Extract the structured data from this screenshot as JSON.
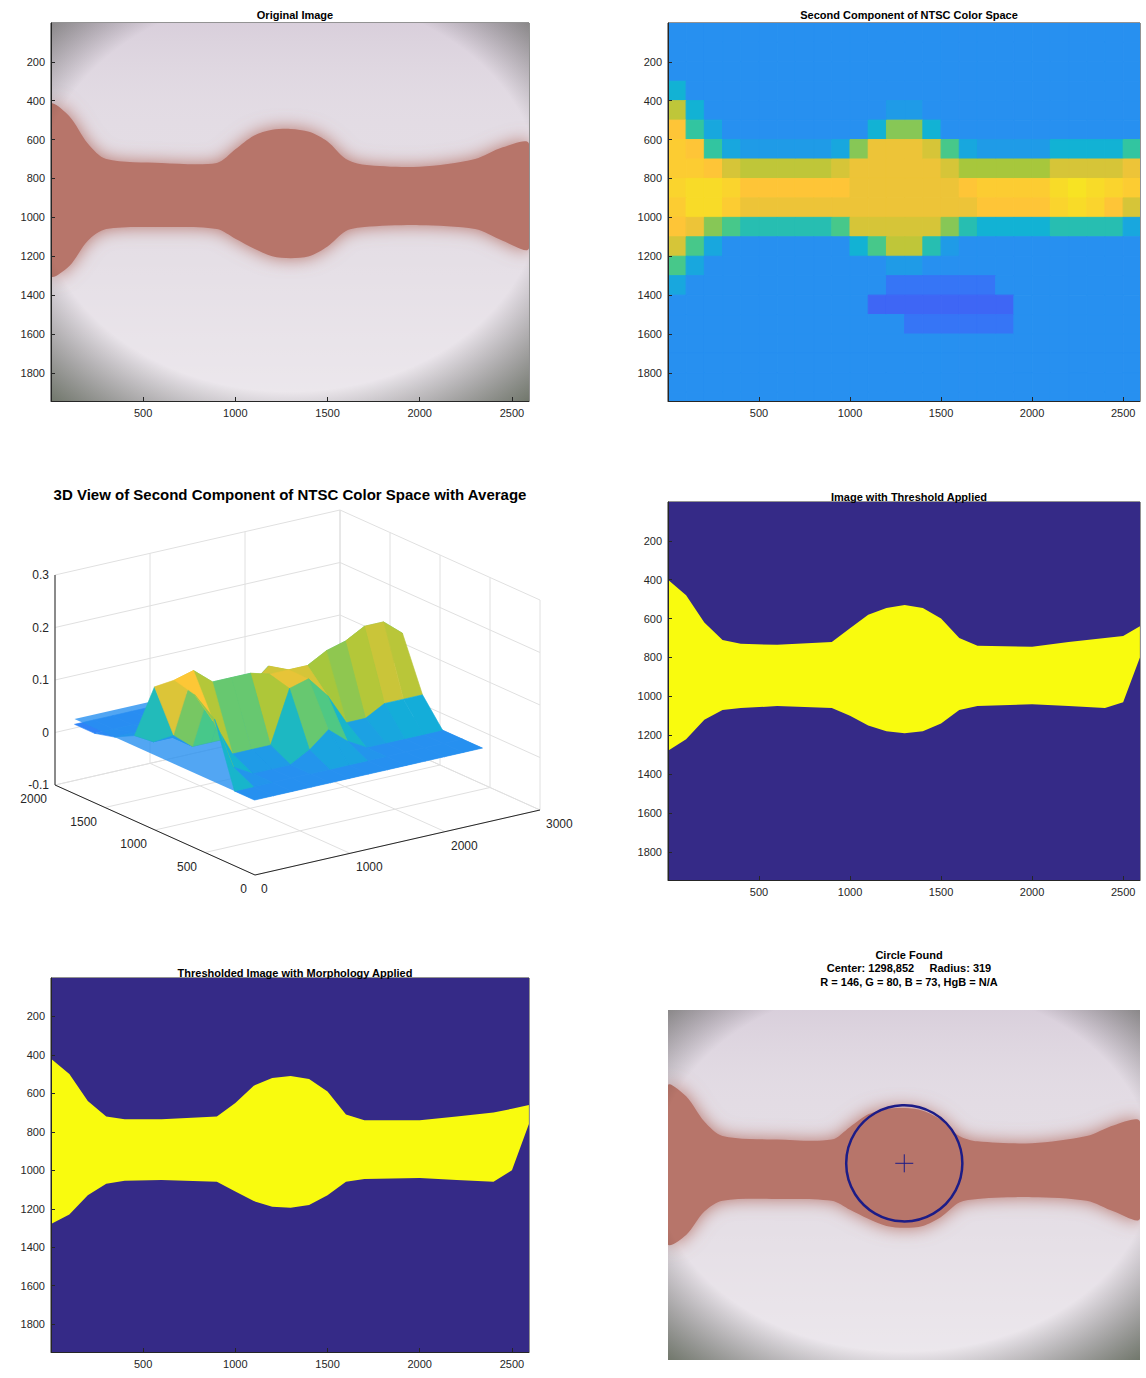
{
  "chart_data": [
    {
      "type": "image",
      "title": "Original Image",
      "xlim": [
        0.5,
        2592.5
      ],
      "ylim": [
        0.5,
        1944.5
      ],
      "xticks": [
        500,
        1000,
        1500,
        2000,
        2500
      ],
      "yticks": [
        200,
        400,
        600,
        800,
        1000,
        1200,
        1400,
        1600,
        1800
      ],
      "colors": [
        "#e2dbe3",
        "#b7746b"
      ],
      "x": [
        0,
        100,
        200,
        300,
        600,
        900,
        1000,
        1100,
        1200,
        1300,
        1400,
        1500,
        1600,
        1700,
        2000,
        2300,
        2450,
        2592
      ],
      "top": [
        420,
        480,
        620,
        700,
        720,
        720,
        650,
        580,
        550,
        545,
        560,
        610,
        700,
        730,
        740,
        700,
        640,
        620
      ],
      "bottom": [
        1300,
        1250,
        1120,
        1060,
        1050,
        1060,
        1110,
        1160,
        1200,
        1210,
        1200,
        1150,
        1070,
        1050,
        1040,
        1060,
        1120,
        1160
      ]
    },
    {
      "type": "heatmap",
      "title": "Second Component of NTSC Color Space",
      "xlim": [
        0.5,
        2592.5
      ],
      "ylim": [
        0.5,
        1944.5
      ],
      "xticks": [
        500,
        1000,
        1500,
        2000,
        2500
      ],
      "yticks": [
        200,
        400,
        600,
        800,
        1000,
        1200,
        1400,
        1600,
        1800
      ],
      "clim": [
        -0.05,
        0.24
      ],
      "x": [
        50,
        150,
        250,
        350,
        450,
        550,
        650,
        750,
        850,
        950,
        1050,
        1150,
        1250,
        1350,
        1450,
        1550,
        1650,
        1750,
        1850,
        1950,
        2050,
        2150,
        2250,
        2350,
        2450,
        2550
      ],
      "y": [
        50,
        150,
        250,
        350,
        450,
        550,
        650,
        750,
        850,
        950,
        1050,
        1150,
        1250,
        1350,
        1450,
        1550,
        1650,
        1750,
        1850,
        1950
      ],
      "cells": [
        [
          0.03,
          0.03,
          0.03,
          0.03,
          0.03,
          0.03,
          0.03,
          0.03,
          0.03,
          0.03,
          0.03,
          0.03,
          0.03,
          0.03,
          0.03,
          0.03,
          0.03,
          0.03,
          0.03,
          0.03,
          0.03,
          0.03,
          0.03,
          0.03,
          0.03,
          0.03
        ],
        [
          0.03,
          0.03,
          0.03,
          0.03,
          0.03,
          0.03,
          0.03,
          0.03,
          0.03,
          0.03,
          0.03,
          0.03,
          0.03,
          0.03,
          0.03,
          0.03,
          0.03,
          0.03,
          0.03,
          0.03,
          0.03,
          0.03,
          0.03,
          0.03,
          0.03,
          0.03
        ],
        [
          0.03,
          0.03,
          0.03,
          0.03,
          0.03,
          0.03,
          0.03,
          0.03,
          0.03,
          0.03,
          0.03,
          0.03,
          0.03,
          0.03,
          0.03,
          0.03,
          0.03,
          0.03,
          0.03,
          0.03,
          0.03,
          0.03,
          0.03,
          0.03,
          0.03,
          0.03
        ],
        [
          0.06,
          0.03,
          0.03,
          0.03,
          0.03,
          0.03,
          0.03,
          0.03,
          0.03,
          0.03,
          0.03,
          0.03,
          0.03,
          0.03,
          0.03,
          0.03,
          0.03,
          0.03,
          0.03,
          0.03,
          0.03,
          0.03,
          0.03,
          0.03,
          0.03,
          0.03
        ],
        [
          0.14,
          0.06,
          0.03,
          0.03,
          0.03,
          0.03,
          0.03,
          0.03,
          0.03,
          0.03,
          0.03,
          0.03,
          0.04,
          0.04,
          0.03,
          0.03,
          0.03,
          0.03,
          0.03,
          0.03,
          0.03,
          0.03,
          0.03,
          0.03,
          0.03,
          0.03
        ],
        [
          0.17,
          0.09,
          0.05,
          0.03,
          0.03,
          0.03,
          0.03,
          0.03,
          0.03,
          0.03,
          0.03,
          0.06,
          0.12,
          0.12,
          0.06,
          0.03,
          0.03,
          0.03,
          0.03,
          0.03,
          0.03,
          0.03,
          0.03,
          0.03,
          0.03,
          0.03
        ],
        [
          0.18,
          0.17,
          0.09,
          0.05,
          0.04,
          0.04,
          0.04,
          0.04,
          0.04,
          0.05,
          0.12,
          0.16,
          0.16,
          0.16,
          0.15,
          0.1,
          0.05,
          0.04,
          0.04,
          0.04,
          0.04,
          0.06,
          0.06,
          0.06,
          0.06,
          0.09
        ],
        [
          0.18,
          0.18,
          0.17,
          0.15,
          0.14,
          0.14,
          0.14,
          0.14,
          0.14,
          0.15,
          0.16,
          0.16,
          0.16,
          0.16,
          0.16,
          0.15,
          0.13,
          0.13,
          0.13,
          0.13,
          0.13,
          0.15,
          0.15,
          0.15,
          0.15,
          0.16
        ],
        [
          0.19,
          0.2,
          0.2,
          0.19,
          0.17,
          0.17,
          0.17,
          0.17,
          0.17,
          0.17,
          0.16,
          0.16,
          0.16,
          0.16,
          0.16,
          0.16,
          0.17,
          0.18,
          0.18,
          0.18,
          0.18,
          0.2,
          0.21,
          0.2,
          0.19,
          0.18
        ],
        [
          0.18,
          0.2,
          0.2,
          0.18,
          0.16,
          0.16,
          0.16,
          0.16,
          0.16,
          0.16,
          0.16,
          0.16,
          0.16,
          0.16,
          0.16,
          0.16,
          0.16,
          0.17,
          0.17,
          0.17,
          0.17,
          0.19,
          0.2,
          0.19,
          0.17,
          0.15
        ],
        [
          0.17,
          0.16,
          0.12,
          0.1,
          0.08,
          0.08,
          0.08,
          0.08,
          0.08,
          0.1,
          0.15,
          0.15,
          0.15,
          0.15,
          0.15,
          0.12,
          0.08,
          0.06,
          0.06,
          0.06,
          0.06,
          0.08,
          0.08,
          0.08,
          0.08,
          0.05
        ],
        [
          0.15,
          0.1,
          0.05,
          0.03,
          0.03,
          0.03,
          0.03,
          0.03,
          0.03,
          0.03,
          0.06,
          0.1,
          0.14,
          0.14,
          0.08,
          0.04,
          0.03,
          0.03,
          0.03,
          0.03,
          0.03,
          0.03,
          0.03,
          0.03,
          0.03,
          0.03
        ],
        [
          0.1,
          0.05,
          0.03,
          0.03,
          0.03,
          0.03,
          0.03,
          0.03,
          0.03,
          0.03,
          0.03,
          0.03,
          0.04,
          0.04,
          0.03,
          0.03,
          0.03,
          0.03,
          0.03,
          0.03,
          0.03,
          0.03,
          0.03,
          0.03,
          0.03,
          0.03
        ],
        [
          0.05,
          0.03,
          0.03,
          0.03,
          0.03,
          0.03,
          0.03,
          0.03,
          0.03,
          0.03,
          0.03,
          0.03,
          0.01,
          0.01,
          0.01,
          0.01,
          0.01,
          0.01,
          0.03,
          0.03,
          0.03,
          0.03,
          0.03,
          0.03,
          0.03,
          0.03
        ],
        [
          0.03,
          0.03,
          0.03,
          0.03,
          0.03,
          0.03,
          0.03,
          0.03,
          0.03,
          0.03,
          0.03,
          0,
          0,
          0,
          0,
          0,
          0,
          0,
          0,
          0.03,
          0.03,
          0.03,
          0.03,
          0.03,
          0.03,
          0.03
        ],
        [
          0.03,
          0.03,
          0.03,
          0.03,
          0.03,
          0.03,
          0.03,
          0.03,
          0.03,
          0.03,
          0.03,
          0.03,
          0.03,
          0.01,
          0.01,
          0.01,
          0.01,
          0.01,
          0.01,
          0.03,
          0.03,
          0.03,
          0.03,
          0.03,
          0.03,
          0.03
        ],
        [
          0.03,
          0.03,
          0.03,
          0.03,
          0.03,
          0.03,
          0.03,
          0.03,
          0.03,
          0.03,
          0.03,
          0.03,
          0.03,
          0.03,
          0.03,
          0.03,
          0.03,
          0.03,
          0.03,
          0.03,
          0.03,
          0.03,
          0.03,
          0.03,
          0.03,
          0.03
        ],
        [
          0.03,
          0.03,
          0.03,
          0.03,
          0.03,
          0.03,
          0.03,
          0.03,
          0.03,
          0.03,
          0.03,
          0.03,
          0.03,
          0.03,
          0.03,
          0.03,
          0.03,
          0.03,
          0.03,
          0.03,
          0.03,
          0.03,
          0.03,
          0.03,
          0.03,
          0.03
        ],
        [
          0.03,
          0.03,
          0.03,
          0.03,
          0.03,
          0.03,
          0.03,
          0.03,
          0.03,
          0.03,
          0.03,
          0.03,
          0.03,
          0.03,
          0.03,
          0.03,
          0.03,
          0.03,
          0.03,
          0.03,
          0.03,
          0.03,
          0.03,
          0.03,
          0.03,
          0.03
        ],
        [
          0.03,
          0.03,
          0.03,
          0.03,
          0.03,
          0.03,
          0.03,
          0.03,
          0.03,
          0.03,
          0.03,
          0.03,
          0.03,
          0.03,
          0.03,
          0.03,
          0.03,
          0.03,
          0.03,
          0.03,
          0.03,
          0.03,
          0.03,
          0.03,
          0.03,
          0.03
        ]
      ]
    },
    {
      "type": "surface",
      "title": "3D View of Second Component of NTSC Color Space with Average",
      "xlim": [
        0,
        3000
      ],
      "ylim": [
        0,
        2000
      ],
      "zlim": [
        -0.1,
        0.3
      ],
      "xticks": [
        0,
        1000,
        2000,
        3000
      ],
      "yticks": [
        0,
        500,
        1000,
        1500,
        2000
      ],
      "zticks": [
        -0.1,
        0,
        0.1,
        0.2,
        0.3
      ],
      "grid": true,
      "clim": [
        -0.05,
        0.24
      ],
      "average": 0.03,
      "x": [
        100,
        300,
        500,
        700,
        900,
        1100,
        1300,
        1500,
        1700,
        1900,
        2100,
        2300,
        2500
      ],
      "y": [
        100,
        300,
        500,
        700,
        900,
        1100,
        1300,
        1500,
        1700,
        1900
      ],
      "z": [
        [
          0.03,
          0.03,
          0.03,
          0.03,
          0.03,
          0.03,
          0.03,
          0.03,
          0.03,
          0.03,
          0.03,
          0.03,
          0.03
        ],
        [
          0.03,
          0.03,
          0.03,
          0.03,
          0.03,
          0.03,
          0.03,
          0.03,
          0.03,
          0.03,
          0.03,
          0.03,
          0.03
        ],
        [
          0.15,
          0.05,
          0.03,
          0.03,
          0.03,
          0.05,
          0.08,
          0.05,
          0.03,
          0.03,
          0.03,
          0.03,
          0.03
        ],
        [
          0.18,
          0.12,
          0.05,
          0.05,
          0.05,
          0.15,
          0.16,
          0.12,
          0.06,
          0.06,
          0.08,
          0.08,
          0.08
        ],
        [
          0.19,
          0.2,
          0.17,
          0.17,
          0.17,
          0.16,
          0.16,
          0.16,
          0.18,
          0.19,
          0.21,
          0.21,
          0.18
        ],
        [
          0.16,
          0.06,
          0.03,
          0.03,
          0.03,
          0.12,
          0.15,
          0.08,
          0.03,
          0.03,
          0.03,
          0.03,
          0.03
        ],
        [
          0.05,
          0.03,
          0.03,
          0.03,
          0.03,
          0.03,
          0.02,
          0.03,
          0.03,
          0.03,
          0.03,
          0.03,
          0.03
        ],
        [
          0.03,
          0.03,
          0.03,
          0.03,
          0.03,
          0,
          0,
          0,
          0,
          0,
          0.03,
          0.03,
          0.03
        ],
        [
          0.02,
          0.02,
          0.02,
          0.02,
          0.02,
          0.02,
          0.02,
          0.02,
          0.02,
          0.02,
          0.02,
          0.02,
          0.02
        ],
        [
          0.02,
          0.02,
          0.02,
          0.02,
          0.02,
          0.02,
          0.02,
          0.02,
          0.02,
          0.02,
          0.02,
          0.02,
          0.02
        ]
      ]
    },
    {
      "type": "mask",
      "title": "Image with Threshold Applied",
      "xlim": [
        0.5,
        2592.5
      ],
      "ylim": [
        0.5,
        1944.5
      ],
      "xticks": [
        500,
        1000,
        1500,
        2000,
        2500
      ],
      "yticks": [
        200,
        400,
        600,
        800,
        1000,
        1200,
        1400,
        1600,
        1800
      ],
      "colors": [
        "#352a87",
        "#f9fb0e"
      ],
      "x": [
        0,
        100,
        200,
        300,
        400,
        600,
        900,
        1000,
        1100,
        1200,
        1300,
        1400,
        1500,
        1600,
        1700,
        2000,
        2200,
        2400,
        2500,
        2592
      ],
      "top": [
        400,
        480,
        620,
        710,
        730,
        735,
        720,
        650,
        580,
        545,
        530,
        545,
        600,
        700,
        740,
        745,
        720,
        700,
        690,
        640
      ],
      "bottom": [
        1280,
        1220,
        1120,
        1070,
        1060,
        1050,
        1060,
        1100,
        1150,
        1180,
        1190,
        1180,
        1140,
        1070,
        1050,
        1040,
        1050,
        1060,
        1030,
        800
      ]
    },
    {
      "type": "mask",
      "title": "Thresholded Image with Morphology Applied",
      "xlim": [
        0.5,
        2592.5
      ],
      "ylim": [
        0.5,
        1944.5
      ],
      "xticks": [
        500,
        1000,
        1500,
        2000,
        2500
      ],
      "yticks": [
        200,
        400,
        600,
        800,
        1000,
        1200,
        1400,
        1600,
        1800
      ],
      "colors": [
        "#352a87",
        "#f9fb0e"
      ],
      "x": [
        0,
        100,
        200,
        300,
        400,
        600,
        900,
        1000,
        1100,
        1200,
        1300,
        1400,
        1500,
        1600,
        1700,
        2000,
        2200,
        2400,
        2500,
        2592
      ],
      "top": [
        420,
        500,
        640,
        720,
        735,
        735,
        720,
        650,
        560,
        520,
        510,
        525,
        590,
        710,
        740,
        740,
        720,
        700,
        680,
        660
      ],
      "bottom": [
        1280,
        1230,
        1130,
        1070,
        1055,
        1050,
        1060,
        1110,
        1160,
        1190,
        1195,
        1180,
        1130,
        1060,
        1045,
        1040,
        1050,
        1060,
        1000,
        760
      ]
    },
    {
      "type": "image",
      "title": "Circle Found",
      "subtitle": [
        "Center: 1298,852     Radius: 319",
        "R = 146, G = 80, B = 73, HgB = N/A"
      ],
      "tick_labels": false,
      "xlim": [
        0.5,
        2592.5
      ],
      "ylim": [
        0.5,
        1944.5
      ],
      "colors": [
        "#e2dbe3",
        "#b7746b"
      ],
      "x": [
        0,
        100,
        200,
        300,
        600,
        900,
        1000,
        1100,
        1200,
        1300,
        1400,
        1500,
        1600,
        1700,
        2000,
        2300,
        2450,
        2592
      ],
      "top": [
        420,
        480,
        620,
        700,
        720,
        720,
        650,
        580,
        550,
        545,
        560,
        610,
        700,
        730,
        740,
        700,
        640,
        620
      ],
      "bottom": [
        1300,
        1250,
        1120,
        1060,
        1050,
        1060,
        1110,
        1160,
        1200,
        1210,
        1200,
        1150,
        1070,
        1050,
        1040,
        1060,
        1120,
        1160
      ],
      "circle": {
        "center": [
          1298,
          852
        ],
        "radius": 319,
        "color": "#1c1c87",
        "marker": "cross"
      }
    }
  ]
}
